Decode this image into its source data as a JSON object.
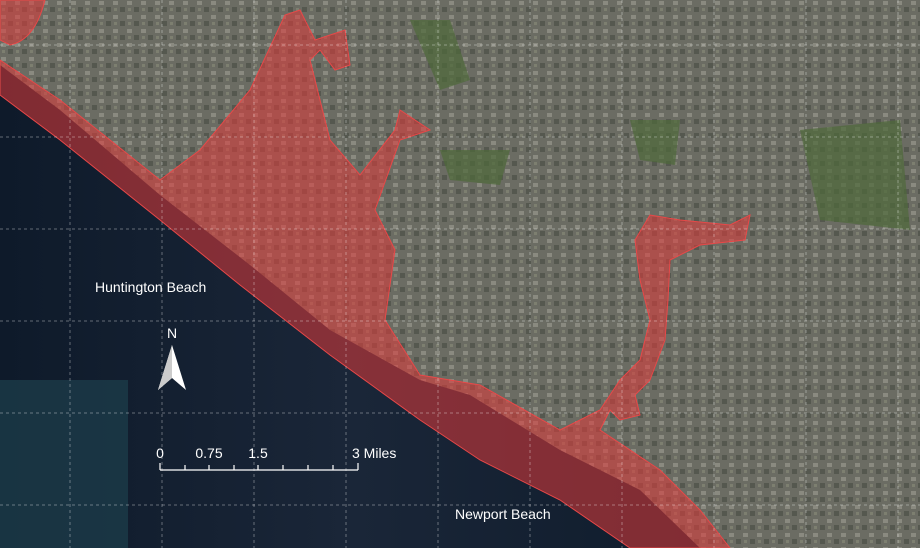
{
  "map": {
    "labels": {
      "huntington": "Huntington Beach",
      "newport": "Newport Beach"
    },
    "north_arrow": {
      "label": "N"
    },
    "scale_bar": {
      "labels": [
        "0",
        "0.75",
        "1.5",
        "3 Miles"
      ]
    }
  }
}
